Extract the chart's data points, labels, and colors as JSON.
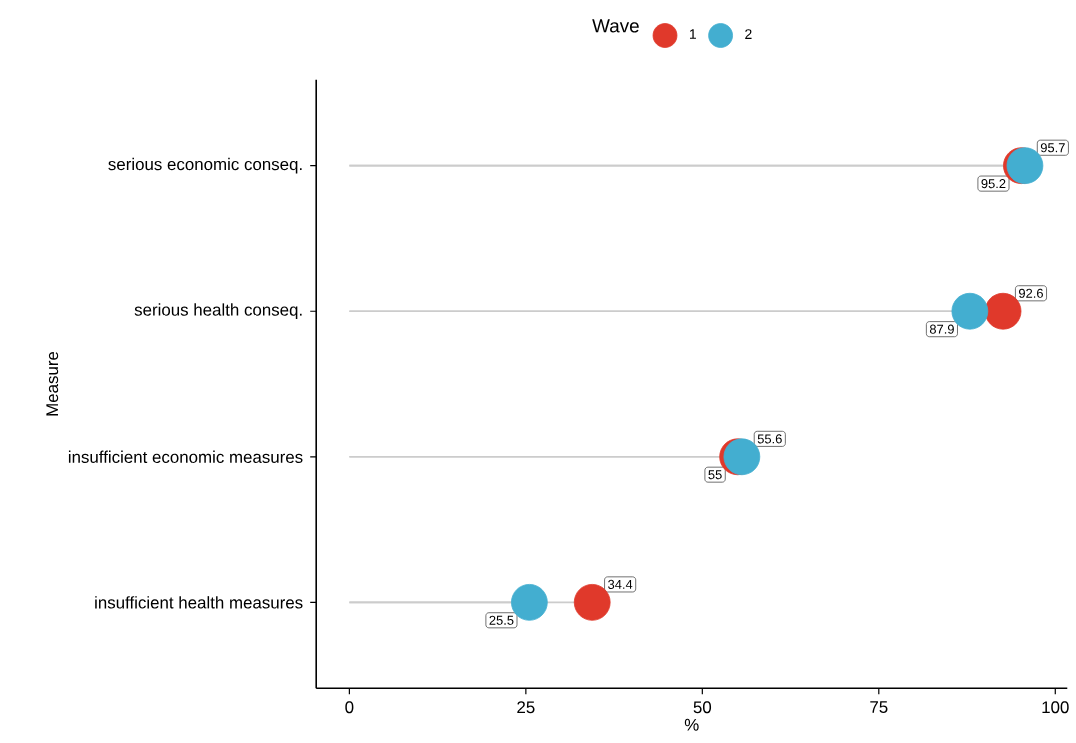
{
  "chart_data": {
    "type": "lollipop",
    "orientation": "horizontal",
    "xlabel": "%",
    "ylabel": "Measure",
    "legend_title": "Wave",
    "legend": "top",
    "categories": [
      "serious economic conseq.",
      "serious health conseq.",
      "insufficient economic measures",
      "insufficient health measures"
    ],
    "series": [
      {
        "name": "1",
        "color": "#e0392b",
        "values": [
          95.2,
          92.6,
          55,
          34.4
        ]
      },
      {
        "name": "2",
        "color": "#43aed0",
        "values": [
          95.7,
          87.9,
          55.6,
          25.5
        ]
      }
    ],
    "xlim": [
      -4.7,
      101.7
    ],
    "xticks": [
      0,
      25,
      50,
      75,
      100
    ],
    "data_labels": true,
    "grid": false,
    "marker": "circle"
  }
}
